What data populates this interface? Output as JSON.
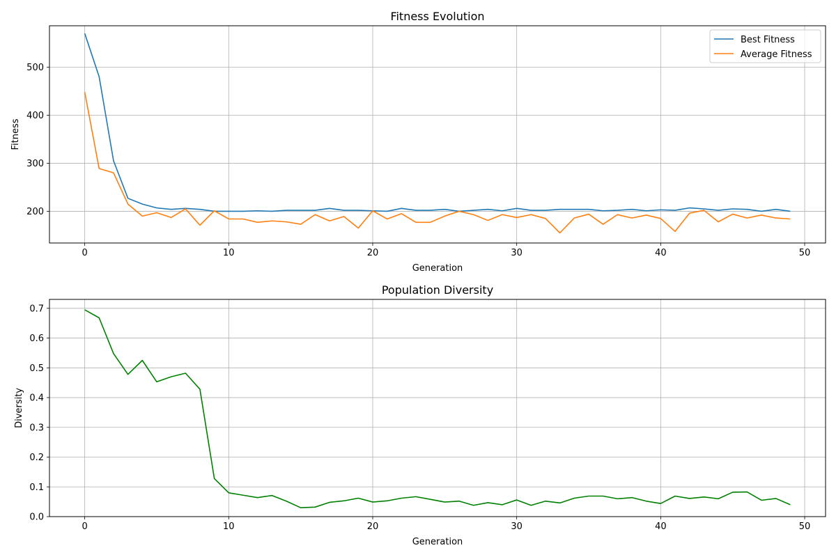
{
  "chart_data": [
    {
      "type": "line",
      "title": "Fitness Evolution",
      "xlabel": "Generation",
      "ylabel": "Fitness",
      "xlim": [
        -2.45,
        51.45
      ],
      "ylim": [
        134,
        586
      ],
      "xticks": [
        0,
        10,
        20,
        30,
        40,
        50
      ],
      "yticks": [
        200,
        300,
        400,
        500
      ],
      "grid": true,
      "legend_position": "top-right",
      "x": [
        0,
        1,
        2,
        3,
        4,
        5,
        6,
        7,
        8,
        9,
        10,
        11,
        12,
        13,
        14,
        15,
        16,
        17,
        18,
        19,
        20,
        21,
        22,
        23,
        24,
        25,
        26,
        27,
        28,
        29,
        30,
        31,
        32,
        33,
        34,
        35,
        36,
        37,
        38,
        39,
        40,
        41,
        42,
        43,
        44,
        45,
        46,
        47,
        48,
        49
      ],
      "series": [
        {
          "name": "Best Fitness",
          "color": "#1f77b4",
          "values": [
            570,
            480,
            305,
            227,
            215,
            207,
            204,
            206,
            204,
            200,
            200,
            200,
            201,
            200,
            202,
            202,
            202,
            206,
            202,
            202,
            201,
            200,
            206,
            202,
            202,
            204,
            200,
            202,
            204,
            201,
            206,
            202,
            202,
            204,
            204,
            204,
            201,
            202,
            204,
            201,
            203,
            202,
            207,
            205,
            202,
            205,
            204,
            200,
            204,
            200
          ]
        },
        {
          "name": "Average Fitness",
          "color": "#ff7f0e",
          "values": [
            448,
            289,
            280,
            215,
            190,
            197,
            187,
            205,
            171,
            201,
            184,
            184,
            177,
            180,
            178,
            173,
            193,
            180,
            189,
            165,
            201,
            184,
            195,
            177,
            177,
            190,
            200,
            193,
            181,
            193,
            187,
            193,
            185,
            155,
            186,
            194,
            173,
            193,
            186,
            192,
            185,
            158,
            196,
            202,
            178,
            194,
            186,
            192,
            186,
            184
          ]
        }
      ]
    },
    {
      "type": "line",
      "title": "Population Diversity",
      "xlabel": "Generation",
      "ylabel": "Diversity",
      "xlim": [
        -2.45,
        51.45
      ],
      "ylim": [
        0,
        0.73
      ],
      "xticks": [
        0,
        10,
        20,
        30,
        40,
        50
      ],
      "yticks": [
        0.0,
        0.1,
        0.2,
        0.3,
        0.4,
        0.5,
        0.6,
        0.7
      ],
      "grid": true,
      "x": [
        0,
        1,
        2,
        3,
        4,
        5,
        6,
        7,
        8,
        9,
        10,
        11,
        12,
        13,
        14,
        15,
        16,
        17,
        18,
        19,
        20,
        21,
        22,
        23,
        24,
        25,
        26,
        27,
        28,
        29,
        30,
        31,
        32,
        33,
        34,
        35,
        36,
        37,
        38,
        39,
        40,
        41,
        42,
        43,
        44,
        45,
        46,
        47,
        48,
        49
      ],
      "series": [
        {
          "color": "#008000",
          "values": [
            0.695,
            0.668,
            0.548,
            0.478,
            0.525,
            0.453,
            0.47,
            0.482,
            0.428,
            0.128,
            0.08,
            0.072,
            0.064,
            0.071,
            0.052,
            0.03,
            0.032,
            0.048,
            0.053,
            0.062,
            0.049,
            0.053,
            0.062,
            0.067,
            0.058,
            0.049,
            0.052,
            0.038,
            0.047,
            0.04,
            0.056,
            0.038,
            0.052,
            0.046,
            0.062,
            0.069,
            0.069,
            0.06,
            0.064,
            0.052,
            0.044,
            0.069,
            0.061,
            0.066,
            0.06,
            0.082,
            0.083,
            0.055,
            0.061,
            0.04
          ]
        }
      ]
    }
  ]
}
